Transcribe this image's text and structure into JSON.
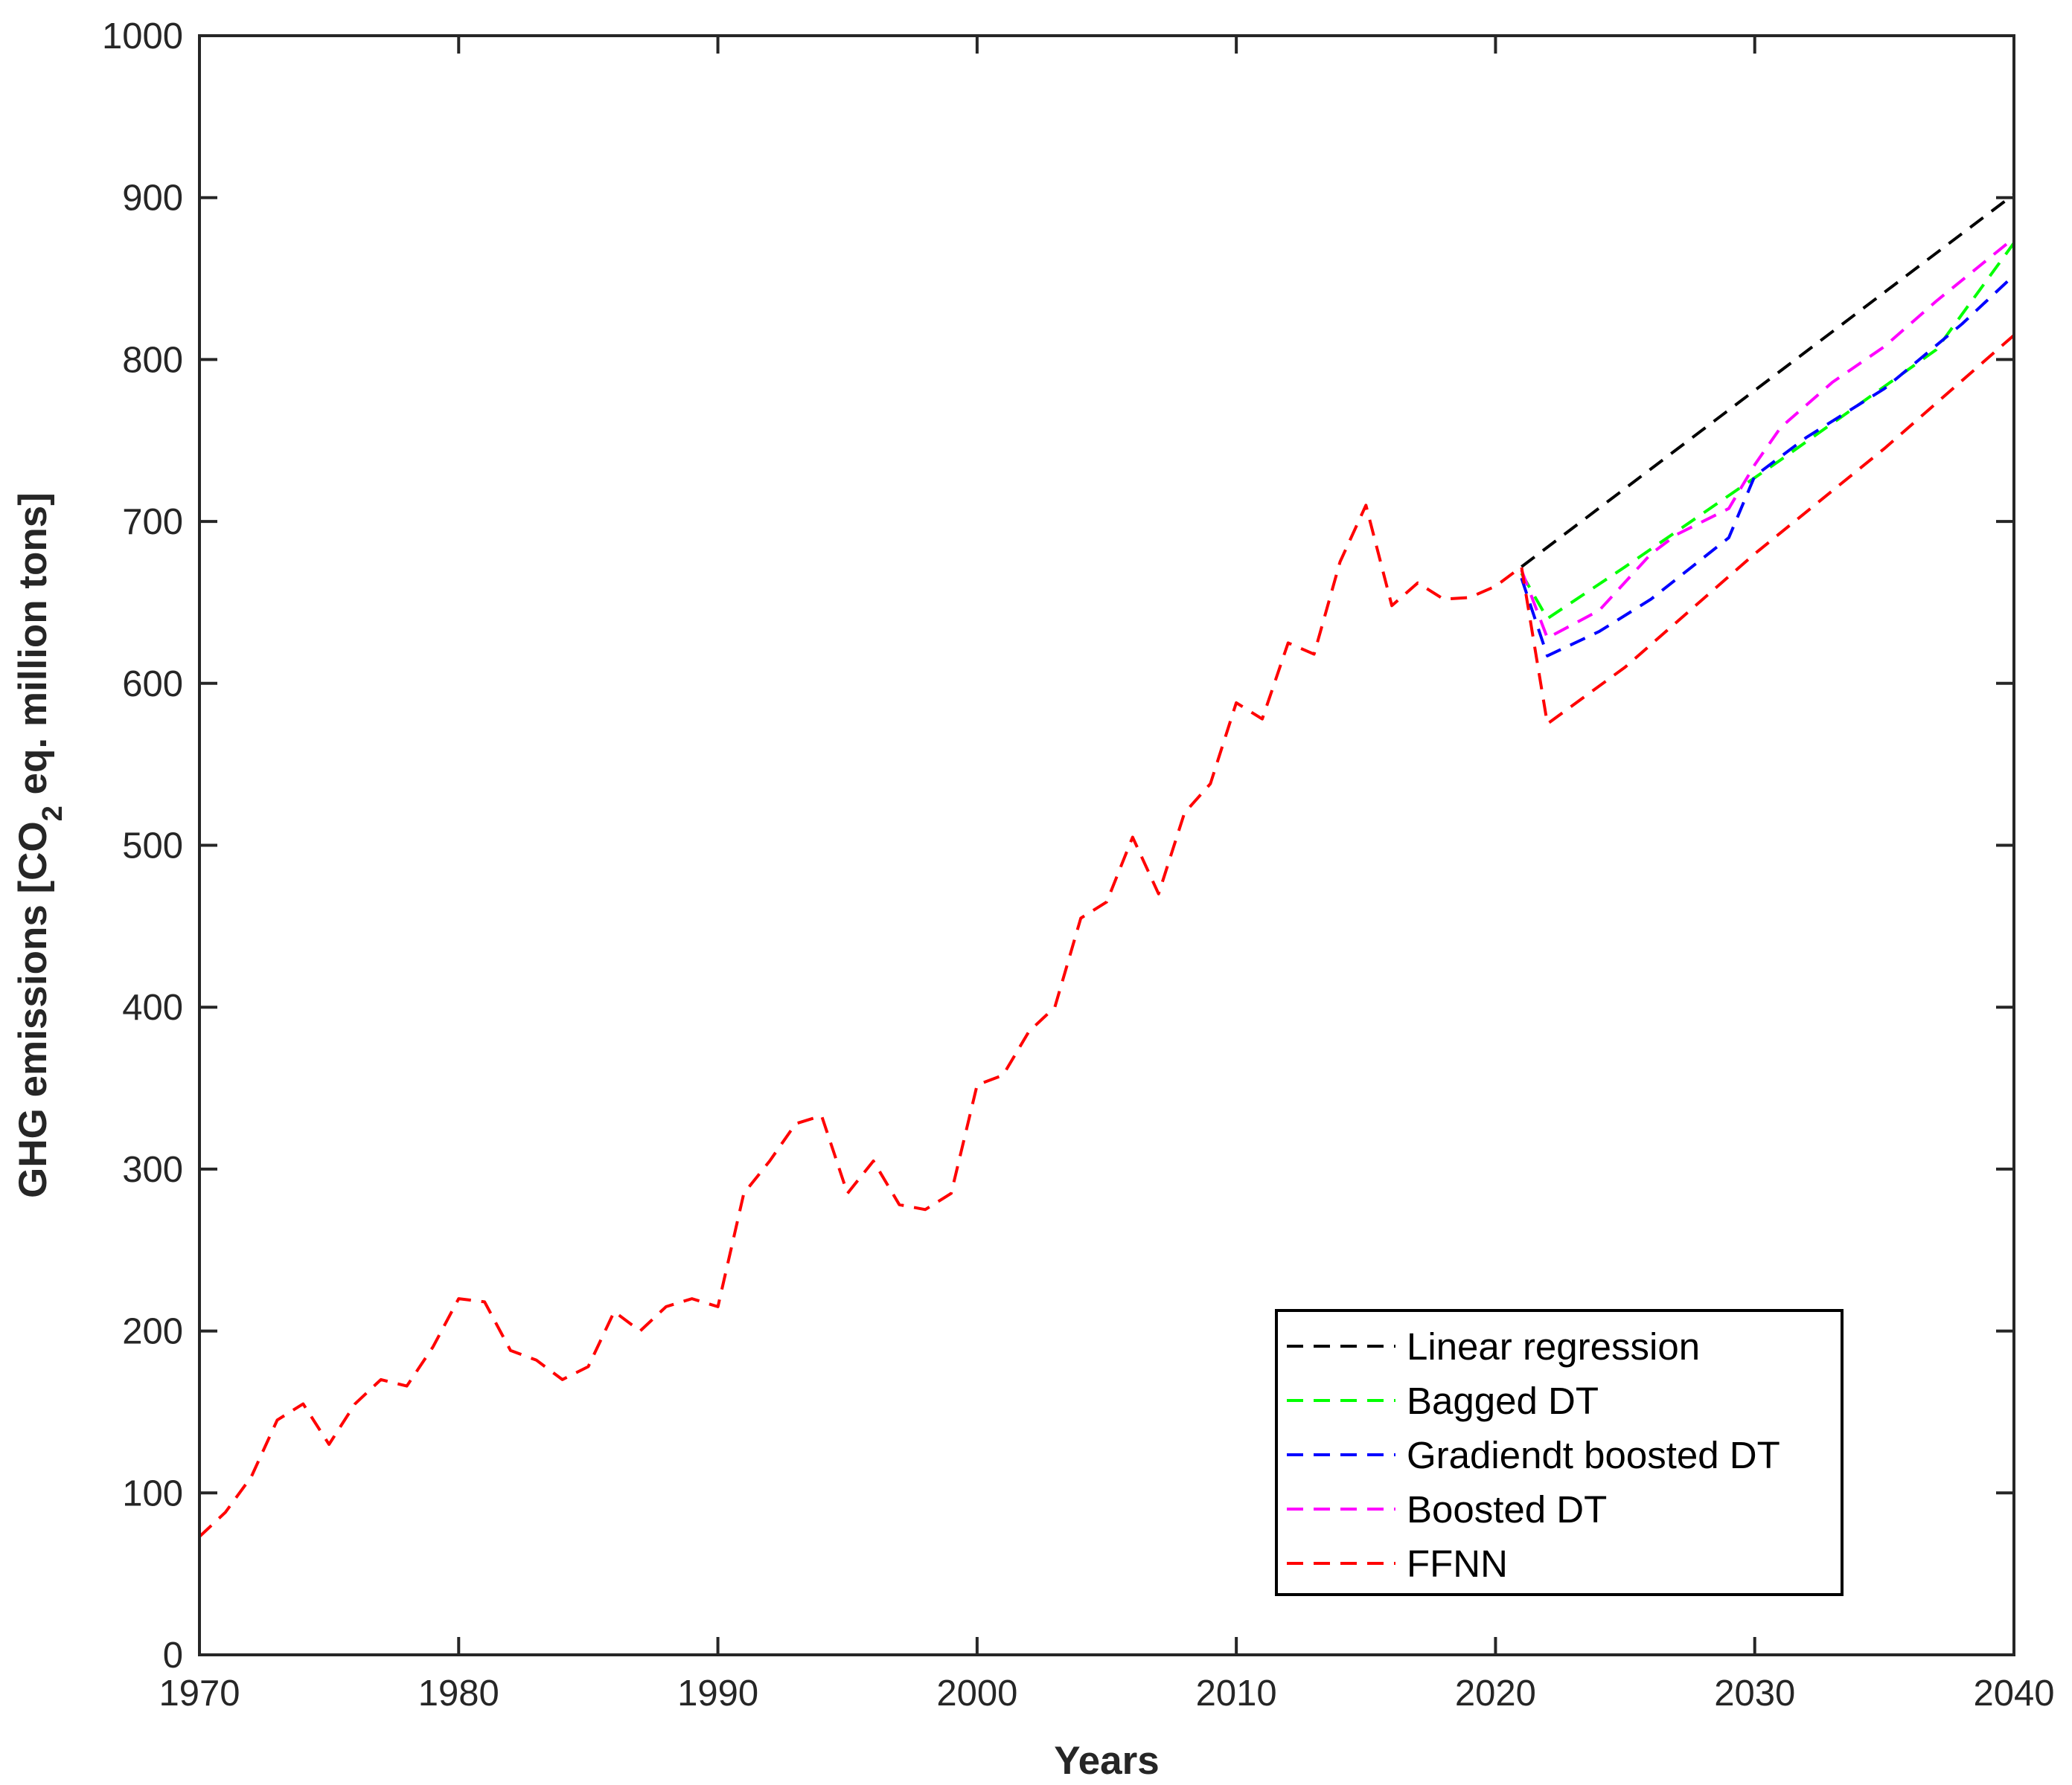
{
  "chart_data": {
    "type": "line",
    "xlabel": "Years",
    "ylabel_parts": [
      "GHG emissions [CO",
      "2",
      " eq. million tons]"
    ],
    "xlim": [
      1970,
      2040
    ],
    "ylim": [
      0,
      1000
    ],
    "x_ticks": [
      1970,
      1980,
      1990,
      2000,
      2010,
      2020,
      2030,
      2040
    ],
    "y_ticks": [
      0,
      100,
      200,
      300,
      400,
      500,
      600,
      700,
      800,
      900,
      1000
    ],
    "grid": false,
    "legend_position": "bottom-right",
    "line_style": "dashed",
    "series": [
      {
        "name": "Linear regression",
        "color": "#000000",
        "points": [
          [
            2021,
            672
          ],
          [
            2040,
            902
          ]
        ]
      },
      {
        "name": "Bagged DT",
        "color": "#00ff00",
        "points": [
          [
            2021,
            668
          ],
          [
            2022,
            640
          ],
          [
            2025,
            672
          ],
          [
            2028,
            705
          ],
          [
            2031,
            738
          ],
          [
            2034,
            772
          ],
          [
            2037,
            806
          ],
          [
            2040,
            872
          ]
        ]
      },
      {
        "name": "Gradiendt boosted DT",
        "color": "#0000ff",
        "points": [
          [
            2021,
            665
          ],
          [
            2022,
            617
          ],
          [
            2024,
            632
          ],
          [
            2026,
            652
          ],
          [
            2029,
            690
          ],
          [
            2030,
            728
          ],
          [
            2032,
            752
          ],
          [
            2035,
            782
          ],
          [
            2038,
            822
          ],
          [
            2040,
            852
          ]
        ]
      },
      {
        "name": "Boosted DT",
        "color": "#ff00ff",
        "points": [
          [
            2021,
            670
          ],
          [
            2022,
            628
          ],
          [
            2024,
            645
          ],
          [
            2026,
            680
          ],
          [
            2027,
            692
          ],
          [
            2029,
            708
          ],
          [
            2030,
            735
          ],
          [
            2031,
            758
          ],
          [
            2033,
            786
          ],
          [
            2035,
            808
          ],
          [
            2037,
            836
          ],
          [
            2040,
            875
          ]
        ]
      },
      {
        "name": "FFNN",
        "color": "#ff0000",
        "points": [
          [
            1970,
            73
          ],
          [
            1971,
            88
          ],
          [
            1972,
            110
          ],
          [
            1973,
            145
          ],
          [
            1974,
            155
          ],
          [
            1975,
            130
          ],
          [
            1976,
            155
          ],
          [
            1977,
            170
          ],
          [
            1978,
            166
          ],
          [
            1979,
            190
          ],
          [
            1980,
            220
          ],
          [
            1981,
            218
          ],
          [
            1982,
            188
          ],
          [
            1983,
            182
          ],
          [
            1984,
            170
          ],
          [
            1985,
            178
          ],
          [
            1986,
            212
          ],
          [
            1987,
            200
          ],
          [
            1988,
            215
          ],
          [
            1989,
            220
          ],
          [
            1990,
            215
          ],
          [
            1991,
            285
          ],
          [
            1992,
            305
          ],
          [
            1993,
            328
          ],
          [
            1994,
            333
          ],
          [
            1995,
            285
          ],
          [
            1996,
            305
          ],
          [
            1997,
            278
          ],
          [
            1998,
            275
          ],
          [
            1999,
            285
          ],
          [
            2000,
            352
          ],
          [
            2001,
            358
          ],
          [
            2002,
            385
          ],
          [
            2003,
            400
          ],
          [
            2004,
            455
          ],
          [
            2005,
            465
          ],
          [
            2006,
            505
          ],
          [
            2007,
            470
          ],
          [
            2008,
            520
          ],
          [
            2009,
            538
          ],
          [
            2010,
            588
          ],
          [
            2011,
            578
          ],
          [
            2012,
            625
          ],
          [
            2013,
            618
          ],
          [
            2014,
            675
          ],
          [
            2015,
            710
          ],
          [
            2016,
            648
          ],
          [
            2017,
            662
          ],
          [
            2018,
            652
          ],
          [
            2019,
            653
          ],
          [
            2020,
            660
          ],
          [
            2021,
            672
          ],
          [
            2022,
            575
          ],
          [
            2025,
            610
          ],
          [
            2030,
            680
          ],
          [
            2035,
            745
          ],
          [
            2040,
            815
          ]
        ]
      }
    ]
  }
}
